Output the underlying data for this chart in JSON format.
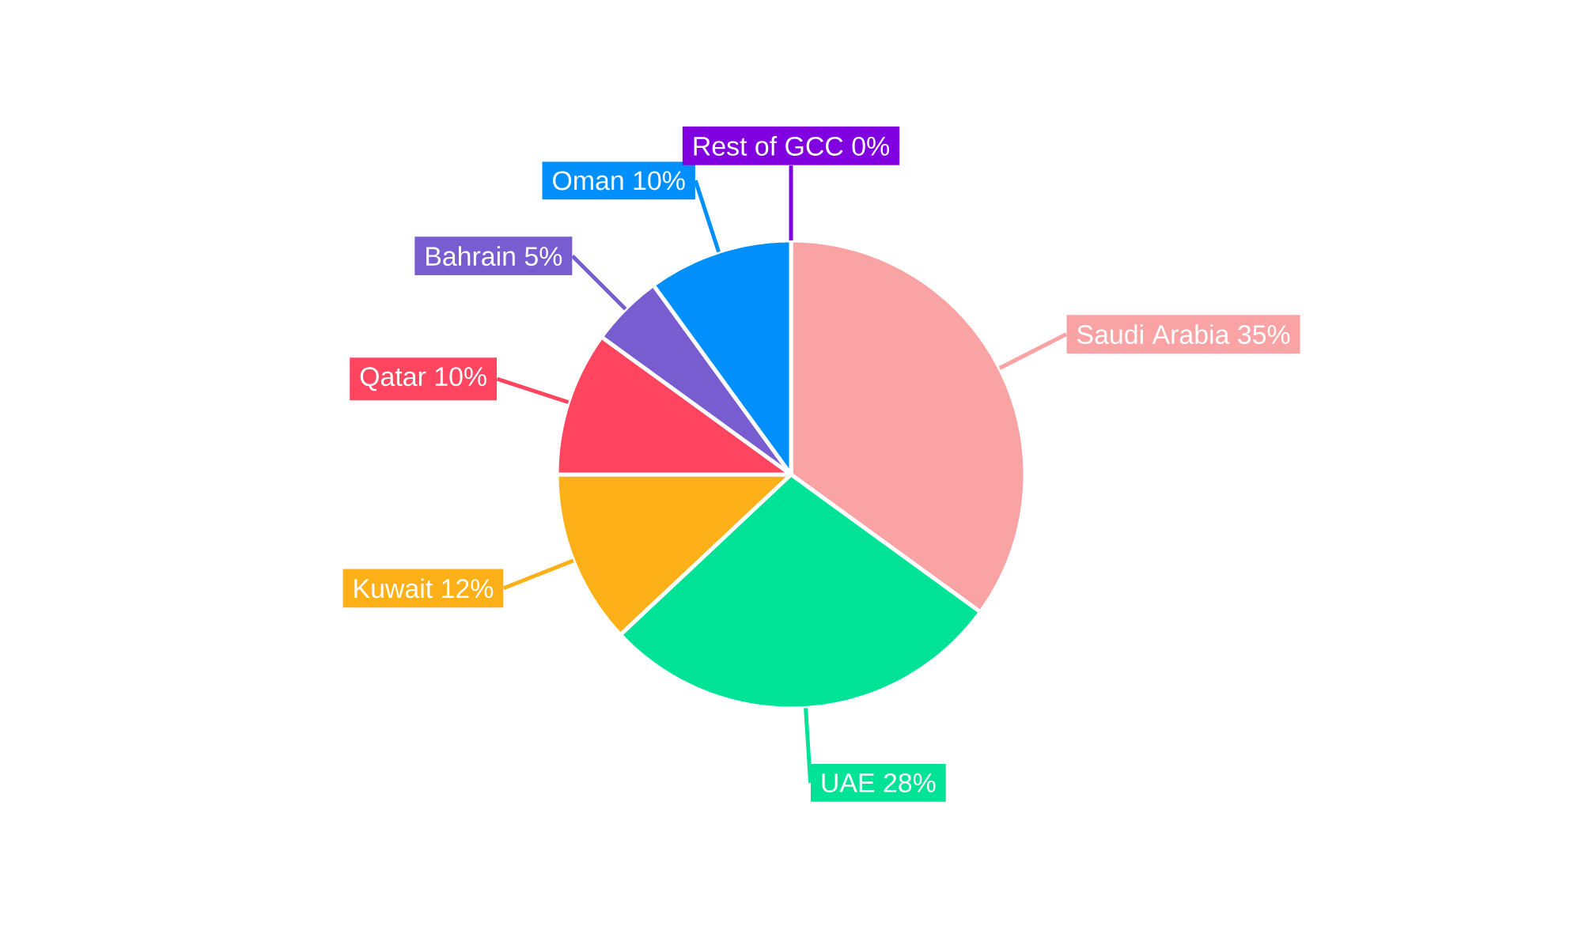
{
  "chart_data": {
    "type": "pie",
    "categories": [
      "Saudi Arabia",
      "UAE",
      "Kuwait",
      "Qatar",
      "Bahrain",
      "Oman",
      "Rest of GCC"
    ],
    "values": [
      35,
      28,
      12,
      10,
      5,
      10,
      0
    ],
    "colors": [
      "#f9a3a4",
      "#00e396",
      "#feb019",
      "#ff4560",
      "#775dd0",
      "#008ffb",
      "#8000e0"
    ],
    "value_labels": [
      "35%",
      "28%",
      "12%",
      "10%",
      "5%",
      "10%",
      "0%"
    ]
  }
}
